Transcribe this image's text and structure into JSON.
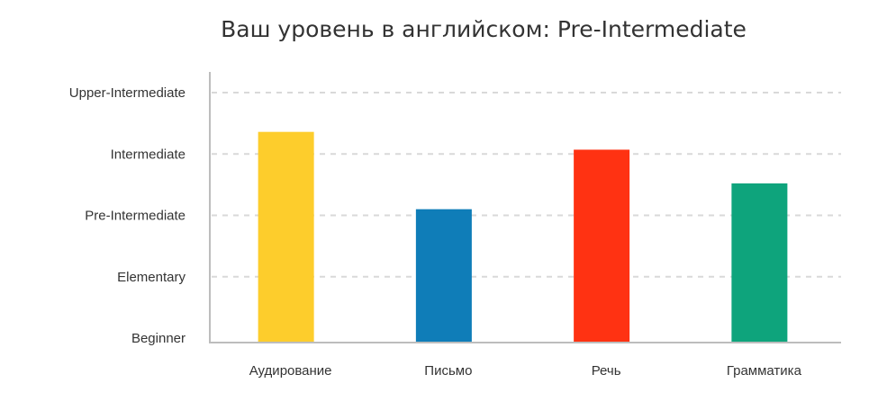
{
  "chart_data": {
    "type": "bar",
    "title": "Ваш уровень в английском: Pre-Intermediate",
    "xlabel": "",
    "ylabel": "",
    "categories": [
      "Аудирование",
      "Письмо",
      "Речь",
      "Грамматика"
    ],
    "values": [
      3.36,
      2.1,
      3.07,
      2.52
    ],
    "colors": [
      "#fdcd2c",
      "#0f7db8",
      "#ff3212",
      "#0ea47c"
    ],
    "y_tick_labels": [
      "Beginner",
      "Elementary",
      "Pre-Intermediate",
      "Intermediate",
      "Upper-Intermediate"
    ],
    "y_tick_values": [
      0,
      1,
      2,
      3,
      4
    ],
    "ylim": [
      0,
      4
    ],
    "grid": true,
    "grid_style": "dashed",
    "legend": "none"
  }
}
